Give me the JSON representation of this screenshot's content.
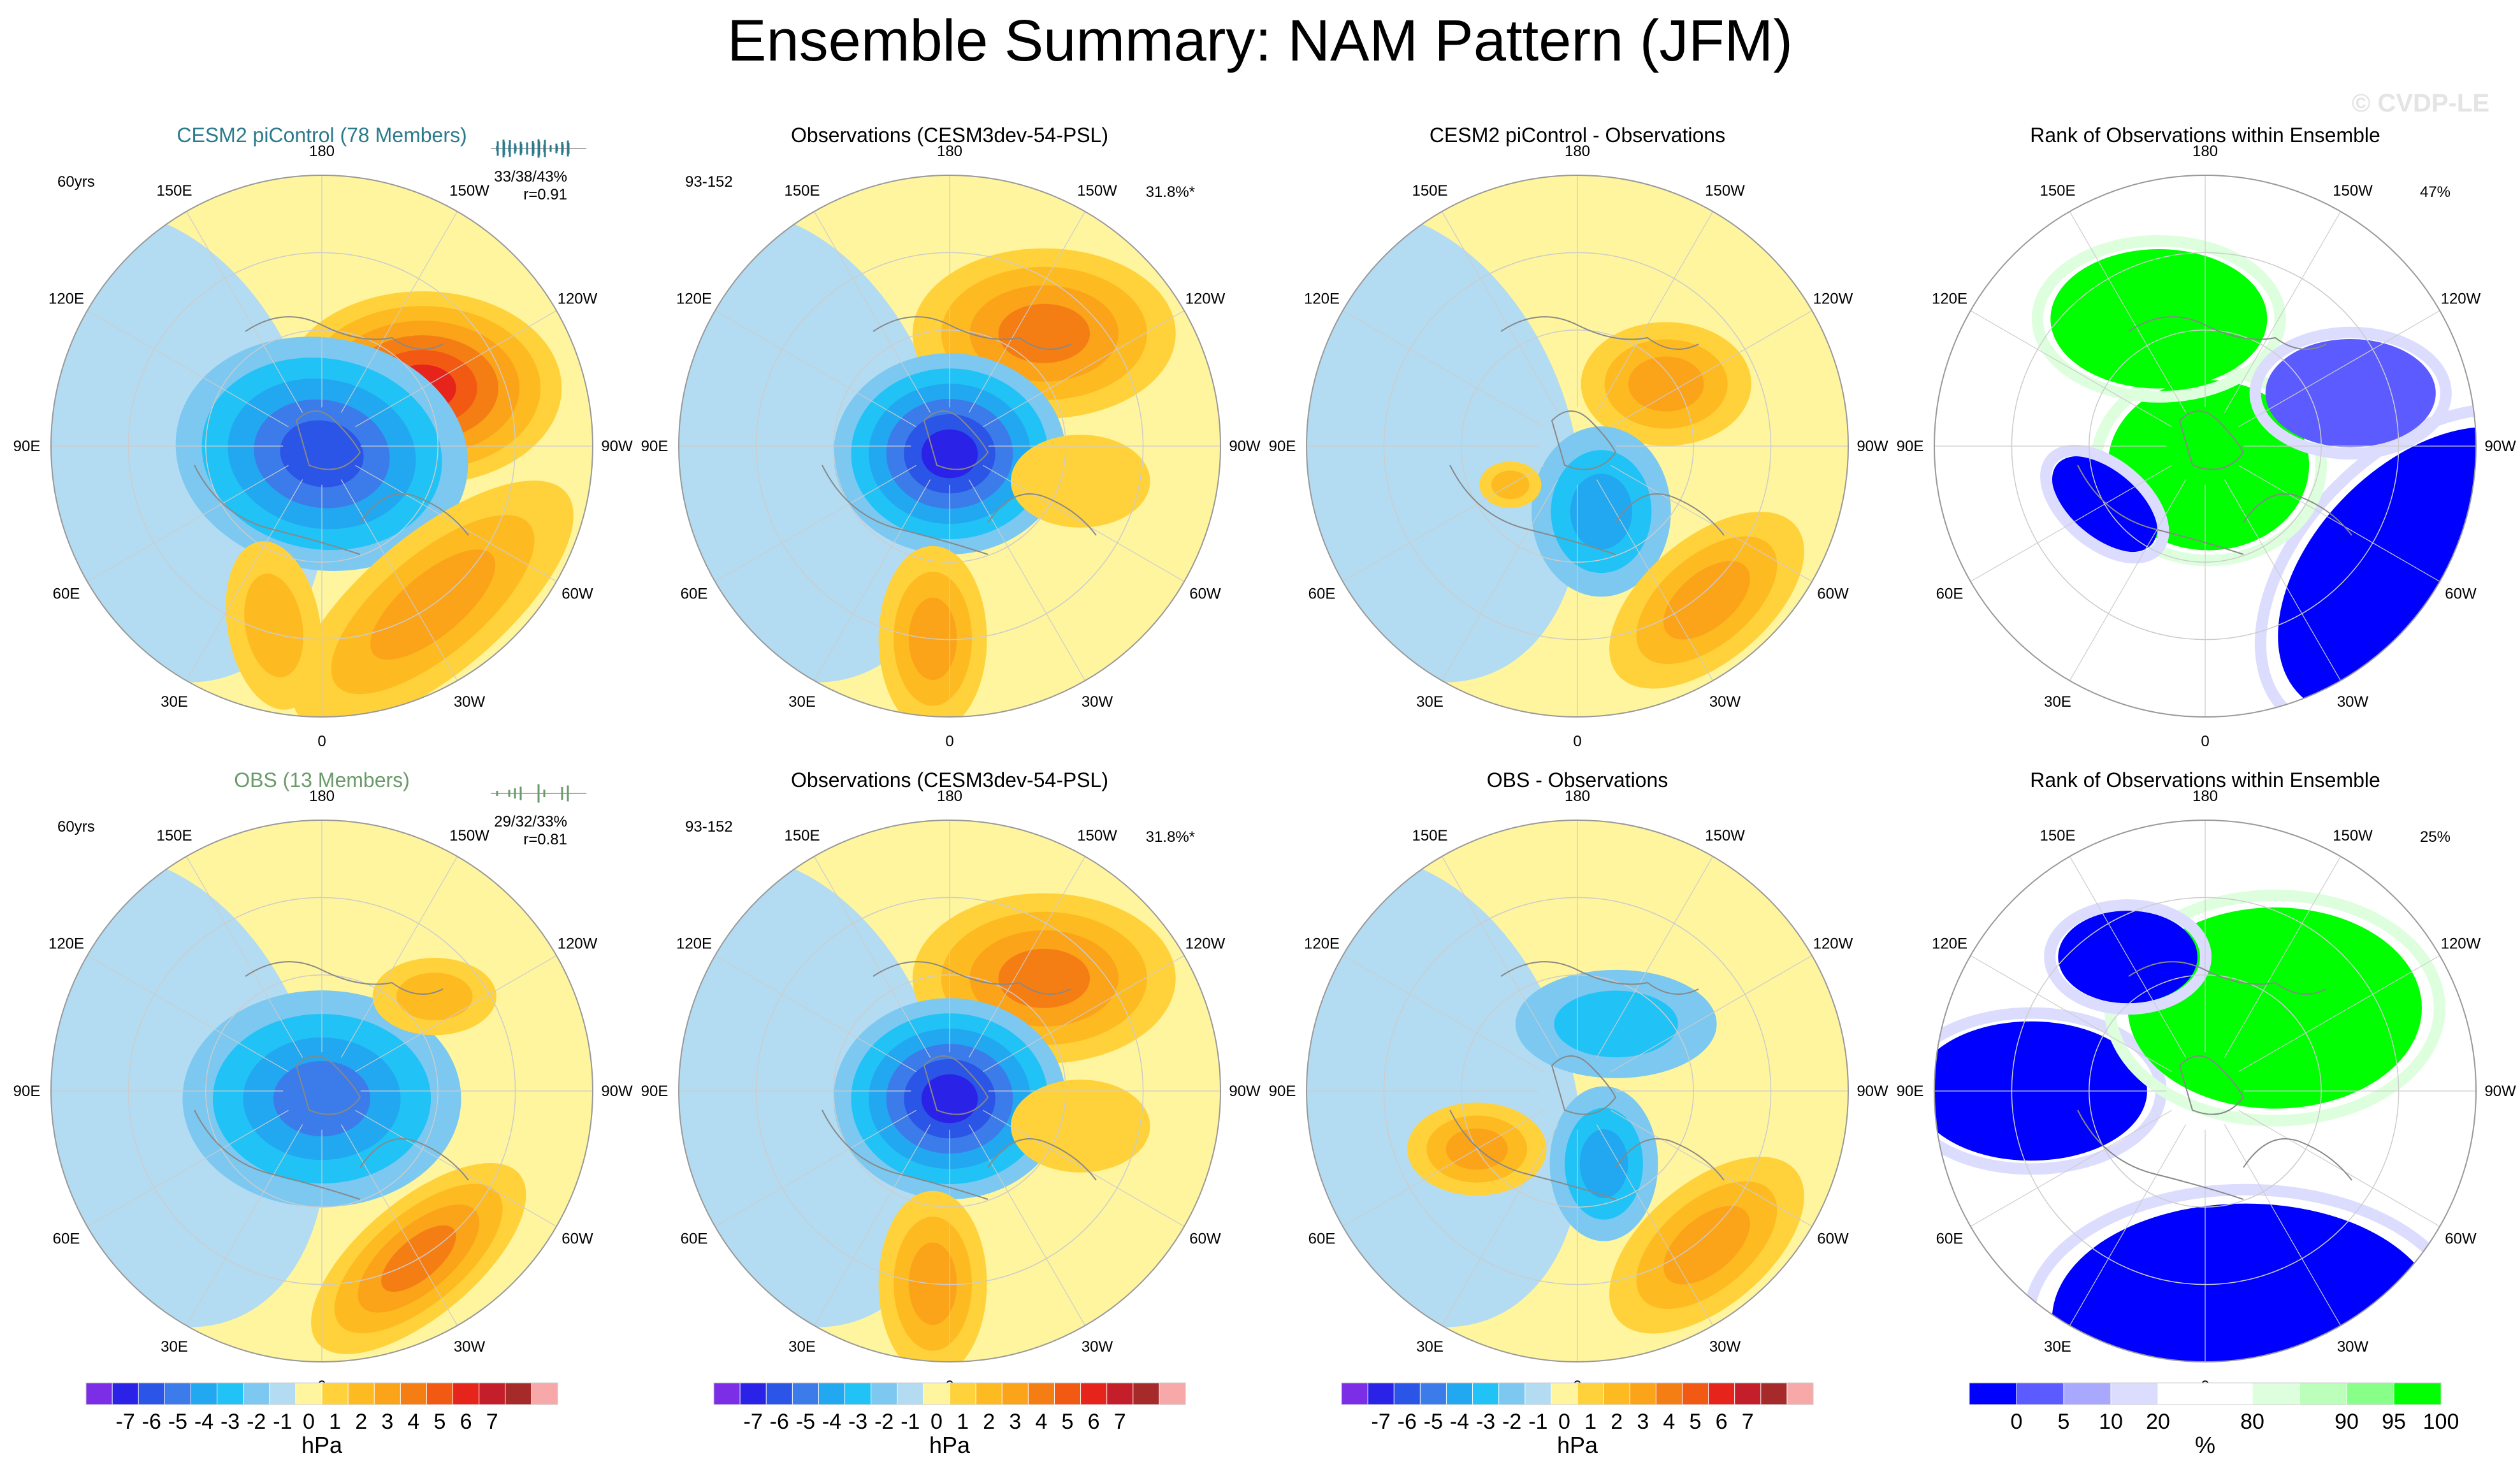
{
  "page_title": "Ensemble Summary: NAM Pattern (JFM)",
  "watermark": "© CVDP-LE",
  "colors": {
    "ocean_blue": "#b3dcf2",
    "land_yellow": "#fff59e",
    "coast": "#888888",
    "grid": "#cccccc",
    "title_cesm": "#2a7a8c",
    "title_obs": "#6a9a6a"
  },
  "longitude_labels": [
    "180",
    "150E",
    "120E",
    "90E",
    "60E",
    "30E",
    "0",
    "30W",
    "60W",
    "90W",
    "120W",
    "150W"
  ],
  "hpa_colorbar": {
    "colors": [
      "#7b2ee6",
      "#2a22e6",
      "#2a55e6",
      "#3b7cea",
      "#21a8f0",
      "#21c2f5",
      "#7cc8f0",
      "#b3dcf2",
      "#fff59e",
      "#ffd23b",
      "#fdbb21",
      "#fba319",
      "#f57e14",
      "#f25a14",
      "#e6241c",
      "#c41e2a",
      "#a62a2a",
      "#f7a8a8"
    ],
    "labels": [
      "-7",
      "-6",
      "-5",
      "-4",
      "-3",
      "-2",
      "-1",
      "0",
      "1",
      "2",
      "3",
      "4",
      "5",
      "6",
      "7"
    ],
    "unit": "hPa"
  },
  "rank_colorbar": {
    "colors": [
      "#0000ff",
      "#5b5bff",
      "#a8a8ff",
      "#dcdcff",
      "#ffffff",
      "#ffffff",
      "#ddffdd",
      "#bbffbb",
      "#88ff88",
      "#00ff00"
    ],
    "labels": [
      "0",
      "5",
      "10",
      "20",
      "80",
      "90",
      "95",
      "100"
    ],
    "unit": "%"
  },
  "chart_data": [
    {
      "type": "heatmap",
      "projection": "polar",
      "row": 1,
      "col": 1,
      "title": "CESM2 piControl (78 Members)",
      "title_color": "#2a7a8c",
      "period": "60yrs",
      "stats": "33/38/43%",
      "corr": "r=0.91",
      "mini_hist": true,
      "mini_color": "#2a7a8c",
      "blobs": [
        {
          "lon": 240,
          "lat": 60,
          "major": 36,
          "minor": 25,
          "angle": 0,
          "value": 6
        },
        {
          "lon": 0,
          "lat": 88,
          "major": 38,
          "minor": 30,
          "angle": 10,
          "value": -5
        },
        {
          "lon": 325,
          "lat": 40,
          "major": 45,
          "minor": 18,
          "angle": 140,
          "value": 3
        },
        {
          "lon": 15,
          "lat": 42,
          "major": 22,
          "minor": 12,
          "angle": 80,
          "value": 2
        }
      ]
    },
    {
      "type": "heatmap",
      "projection": "polar",
      "row": 1,
      "col": 2,
      "title": "Observations (CESM3dev-54-PSL)",
      "title_color": "#000000",
      "period": "93-152",
      "stats": "31.8%*",
      "blobs": [
        {
          "lon": 220,
          "lat": 52,
          "major": 34,
          "minor": 22,
          "angle": 0,
          "value": 4
        },
        {
          "lon": 0,
          "lat": 88,
          "major": 30,
          "minor": 26,
          "angle": 0,
          "value": -6
        },
        {
          "lon": 5,
          "lat": 40,
          "major": 24,
          "minor": 14,
          "angle": 90,
          "value": 3
        },
        {
          "lon": 285,
          "lat": 55,
          "major": 18,
          "minor": 12,
          "angle": 0,
          "value": 1
        }
      ]
    },
    {
      "type": "heatmap",
      "projection": "polar",
      "row": 1,
      "col": 3,
      "title": "CESM2 piControl - Observations",
      "title_color": "#000000",
      "blobs": [
        {
          "lon": 235,
          "lat": 62,
          "major": 22,
          "minor": 16,
          "angle": 0,
          "value": 3
        },
        {
          "lon": 340,
          "lat": 72,
          "major": 18,
          "minor": 22,
          "angle": 0,
          "value": -3
        },
        {
          "lon": 320,
          "lat": 38,
          "major": 30,
          "minor": 16,
          "angle": 140,
          "value": 3
        },
        {
          "lon": 60,
          "lat": 70,
          "major": 8,
          "minor": 6,
          "angle": 0,
          "value": 2
        }
      ]
    },
    {
      "type": "heatmap",
      "projection": "polar",
      "row": 1,
      "col": 4,
      "title": "Rank of Observations within Ensemble",
      "title_color": "#000000",
      "stats": "47%",
      "rank": true,
      "blobs": [
        {
          "lon": 300,
          "lat": 25,
          "major": 45,
          "minor": 28,
          "angle": 135,
          "value": 0
        },
        {
          "lon": 350,
          "lat": 85,
          "major": 26,
          "minor": 22,
          "angle": 0,
          "value": 100
        },
        {
          "lon": 160,
          "lat": 55,
          "major": 28,
          "minor": 18,
          "angle": 0,
          "value": 100
        },
        {
          "lon": 60,
          "lat": 60,
          "major": 16,
          "minor": 9,
          "angle": 40,
          "value": 0
        },
        {
          "lon": 250,
          "lat": 50,
          "major": 22,
          "minor": 14,
          "angle": 0,
          "value": 5
        }
      ]
    },
    {
      "type": "heatmap",
      "projection": "polar",
      "row": 2,
      "col": 1,
      "title": "OBS (13 Members)",
      "title_color": "#6a9a6a",
      "period": "60yrs",
      "stats": "29/32/33%",
      "corr": "r=0.81",
      "mini_hist": true,
      "mini_color": "#6a9a6a",
      "blobs": [
        {
          "lon": 0,
          "lat": 88,
          "major": 36,
          "minor": 28,
          "angle": 0,
          "value": -4
        },
        {
          "lon": 330,
          "lat": 40,
          "major": 34,
          "minor": 15,
          "angle": 140,
          "value": 4
        },
        {
          "lon": 230,
          "lat": 52,
          "major": 16,
          "minor": 10,
          "angle": 0,
          "value": 2
        }
      ]
    },
    {
      "type": "heatmap",
      "projection": "polar",
      "row": 2,
      "col": 2,
      "title": "Observations (CESM3dev-54-PSL)",
      "title_color": "#000000",
      "period": "93-152",
      "stats": "31.8%*",
      "blobs": [
        {
          "lon": 220,
          "lat": 52,
          "major": 34,
          "minor": 22,
          "angle": 0,
          "value": 4
        },
        {
          "lon": 0,
          "lat": 88,
          "major": 30,
          "minor": 26,
          "angle": 0,
          "value": -6
        },
        {
          "lon": 5,
          "lat": 40,
          "major": 24,
          "minor": 14,
          "angle": 90,
          "value": 3
        },
        {
          "lon": 285,
          "lat": 55,
          "major": 18,
          "minor": 12,
          "angle": 0,
          "value": 1
        }
      ]
    },
    {
      "type": "heatmap",
      "projection": "polar",
      "row": 2,
      "col": 3,
      "title": "OBS - Observations",
      "title_color": "#000000",
      "blobs": [
        {
          "lon": 210,
          "lat": 70,
          "major": 26,
          "minor": 14,
          "angle": 0,
          "value": -2
        },
        {
          "lon": 340,
          "lat": 70,
          "major": 14,
          "minor": 20,
          "angle": 0,
          "value": -3
        },
        {
          "lon": 320,
          "lat": 38,
          "major": 30,
          "minor": 16,
          "angle": 140,
          "value": 3
        },
        {
          "lon": 60,
          "lat": 60,
          "major": 18,
          "minor": 12,
          "angle": 0,
          "value": 3
        }
      ]
    },
    {
      "type": "heatmap",
      "projection": "polar",
      "row": 2,
      "col": 4,
      "title": "Rank of Observations within Ensemble",
      "title_color": "#000000",
      "stats": "25%",
      "rank": true,
      "blobs": [
        {
          "lon": 350,
          "lat": 30,
          "major": 50,
          "minor": 30,
          "angle": 0,
          "value": 0
        },
        {
          "lon": 90,
          "lat": 45,
          "major": 30,
          "minor": 18,
          "angle": 0,
          "value": 0
        },
        {
          "lon": 220,
          "lat": 62,
          "major": 38,
          "minor": 26,
          "angle": 0,
          "value": 100
        },
        {
          "lon": 150,
          "lat": 50,
          "major": 18,
          "minor": 12,
          "angle": 0,
          "value": 0
        }
      ]
    }
  ]
}
